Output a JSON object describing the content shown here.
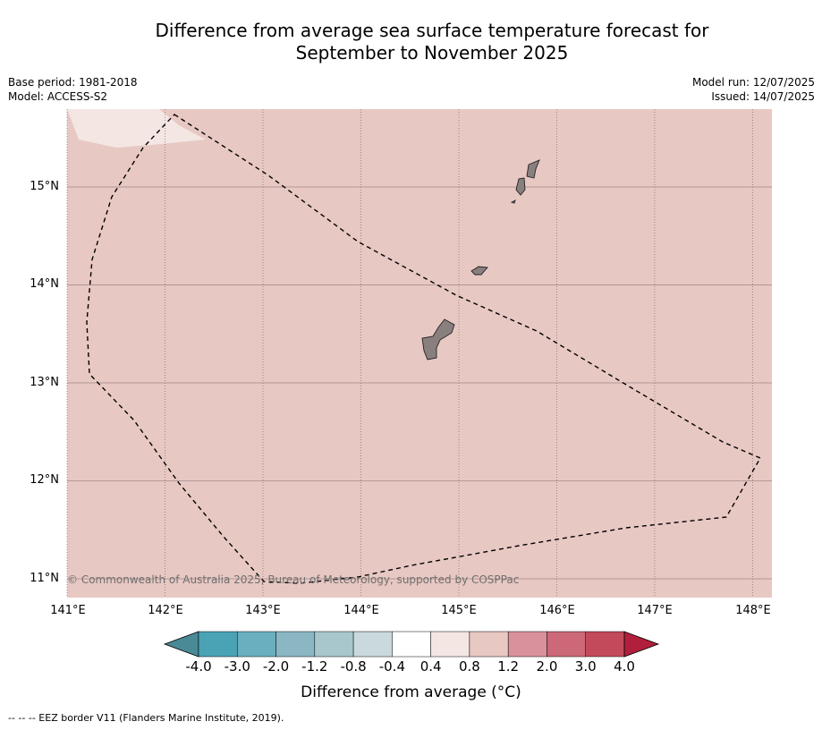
{
  "title_line1": "Difference from average sea surface temperature forecast for",
  "title_line2": "September to November 2025",
  "meta_left": {
    "base_period": "Base period: 1981-2018",
    "model": "Model: ACCESS-S2"
  },
  "meta_right": {
    "model_run": "Model run: 12/07/2025",
    "issued": "Issued: 14/07/2025"
  },
  "map": {
    "latitude_labels": [
      "15°N",
      "14°N",
      "13°N",
      "12°N",
      "11°N"
    ],
    "longitude_labels": [
      "141°E",
      "142°E",
      "143°E",
      "144°E",
      "145°E",
      "146°E",
      "147°E",
      "148°E"
    ],
    "ocean_anomaly_color": "#e8c8c3",
    "near_zero_color": "#f3e6e3",
    "land_color": "#8a7f7f",
    "copyright": "© Commonwealth of Australia 2025, Bureau of Meteorology, supported by COSPPac"
  },
  "colorbar": {
    "title": "Difference from average (°C)",
    "tick_labels": [
      "-4.0",
      "-3.0",
      "-2.0",
      "-1.2",
      "-0.8",
      "-0.4",
      "0.4",
      "0.8",
      "1.2",
      "2.0",
      "3.0",
      "4.0"
    ],
    "colors": [
      "#4a8a96",
      "#4aa3b5",
      "#6aafbf",
      "#8ab7c3",
      "#a8c7cc",
      "#c9d9dc",
      "#ffffff",
      "#f3e6e3",
      "#e8c8c3",
      "#d9929b",
      "#cc6878",
      "#c24a5a",
      "#b21f3c"
    ]
  },
  "footer": "-- -- -- EEZ border V11 (Flanders Marine Institute, 2019)."
}
